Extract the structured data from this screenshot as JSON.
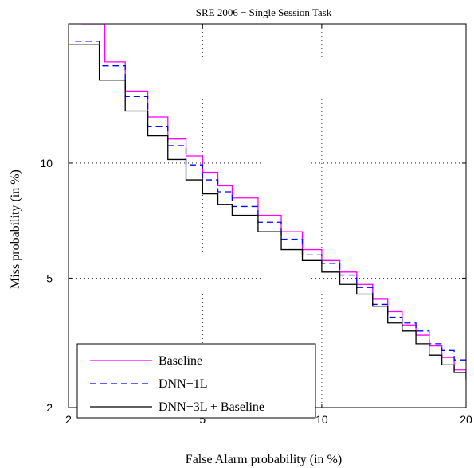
{
  "chart_data": {
    "type": "line",
    "title": "SRE 2006 − Single Session Task",
    "xlabel": "False Alarm probability (in %)",
    "ylabel": "Miss probability (in %)",
    "xscale": "probit",
    "yscale": "probit",
    "xlim": [
      2,
      20
    ],
    "ylim": [
      2,
      20
    ],
    "x_ticks": [
      2,
      5,
      10,
      20
    ],
    "y_ticks": [
      2,
      5,
      10
    ],
    "grid": true,
    "legend_position": "bottom-left",
    "series": [
      {
        "name": "Baseline",
        "color": "#ff00ff",
        "dash": "solid",
        "points": [
          [
            2.2,
            20
          ],
          [
            2.6,
            16.8
          ],
          [
            3.0,
            14.6
          ],
          [
            3.5,
            12.8
          ],
          [
            4.0,
            11.4
          ],
          [
            4.5,
            10.4
          ],
          [
            5.0,
            9.5
          ],
          [
            5.5,
            8.8
          ],
          [
            6.0,
            8.2
          ],
          [
            7.0,
            7.4
          ],
          [
            8.0,
            6.7
          ],
          [
            9.0,
            6.0
          ],
          [
            10.0,
            5.6
          ],
          [
            11.0,
            5.2
          ],
          [
            12.0,
            4.8
          ],
          [
            13.0,
            4.35
          ],
          [
            14.0,
            4.0
          ],
          [
            15.0,
            3.65
          ],
          [
            16.0,
            3.4
          ],
          [
            17.0,
            3.15
          ],
          [
            18.0,
            2.9
          ],
          [
            19.0,
            2.65
          ],
          [
            20.0,
            2.5
          ]
        ]
      },
      {
        "name": "DNN−1L",
        "color": "#0000ff",
        "dash": "dashed",
        "points": [
          [
            2.1,
            18.5
          ],
          [
            2.5,
            16.5
          ],
          [
            3.0,
            14.2
          ],
          [
            3.5,
            12.2
          ],
          [
            4.0,
            11.0
          ],
          [
            4.5,
            9.9
          ],
          [
            5.0,
            9.1
          ],
          [
            5.5,
            8.5
          ],
          [
            6.0,
            7.8
          ],
          [
            7.0,
            7.1
          ],
          [
            8.0,
            6.4
          ],
          [
            9.0,
            5.8
          ],
          [
            10.0,
            5.5
          ],
          [
            11.0,
            5.1
          ],
          [
            12.0,
            4.7
          ],
          [
            13.0,
            4.2
          ],
          [
            14.0,
            3.85
          ],
          [
            15.0,
            3.7
          ],
          [
            16.0,
            3.5
          ],
          [
            17.0,
            3.2
          ],
          [
            18.0,
            3.05
          ],
          [
            19.0,
            2.85
          ],
          [
            20.0,
            2.8
          ]
        ]
      },
      {
        "name": "DNN−3L + Baseline",
        "color": "#000000",
        "dash": "solid",
        "points": [
          [
            2.0,
            18.2
          ],
          [
            2.5,
            15.4
          ],
          [
            3.0,
            13.2
          ],
          [
            3.5,
            11.6
          ],
          [
            4.0,
            10.2
          ],
          [
            4.5,
            9.1
          ],
          [
            5.0,
            8.4
          ],
          [
            5.5,
            7.9
          ],
          [
            6.0,
            7.4
          ],
          [
            7.0,
            6.7
          ],
          [
            8.0,
            6.0
          ],
          [
            9.0,
            5.6
          ],
          [
            10.0,
            5.2
          ],
          [
            11.0,
            4.8
          ],
          [
            12.0,
            4.5
          ],
          [
            13.0,
            4.15
          ],
          [
            14.0,
            3.7
          ],
          [
            15.0,
            3.5
          ],
          [
            16.0,
            3.2
          ],
          [
            17.0,
            2.95
          ],
          [
            18.0,
            2.75
          ],
          [
            19.0,
            2.6
          ],
          [
            20.0,
            2.45
          ]
        ]
      }
    ]
  }
}
